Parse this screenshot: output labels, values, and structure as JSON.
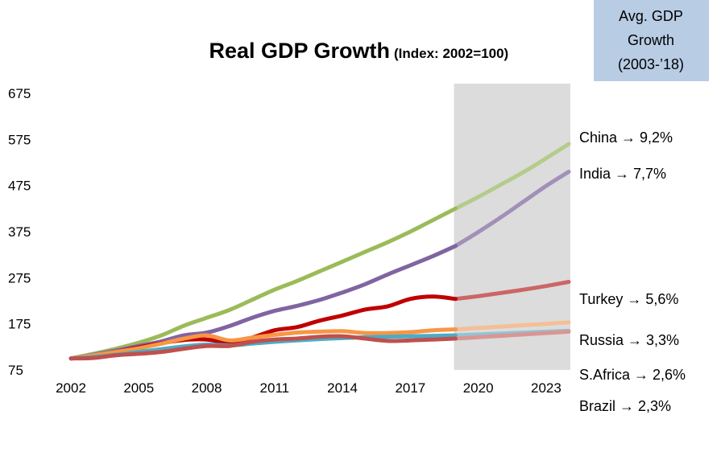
{
  "chart_data": {
    "type": "line",
    "title": "Real GDP Growth",
    "subtitle": "(Index: 2002=100)",
    "xlabel": "",
    "ylabel": "",
    "xlim": [
      2002,
      2024
    ],
    "ylim": [
      75,
      675
    ],
    "x_ticks": [
      "2002",
      "2005",
      "2008",
      "2011",
      "2014",
      "2017",
      "2020",
      "2023"
    ],
    "y_ticks": [
      "675",
      "575",
      "475",
      "375",
      "275",
      "175",
      "75"
    ],
    "grid": false,
    "shaded_region": {
      "x_start": 2019,
      "x_end": 2024,
      "color": "#dcdcdc"
    },
    "legend_box": {
      "lines": [
        "Avg. GDP",
        "Growth",
        "(2003-’18)"
      ],
      "color": "#b8cce4"
    },
    "series": [
      {
        "name": "China",
        "annotation": "China → 9,2%",
        "color": "#9bbb59",
        "projection_color": "#b4cc8a",
        "points": [
          [
            2002,
            100
          ],
          [
            2003,
            110
          ],
          [
            2004,
            121
          ],
          [
            2005,
            134
          ],
          [
            2006,
            150
          ],
          [
            2007,
            171
          ],
          [
            2008,
            188
          ],
          [
            2009,
            205
          ],
          [
            2010,
            227
          ],
          [
            2011,
            249
          ],
          [
            2012,
            268
          ],
          [
            2013,
            289
          ],
          [
            2014,
            310
          ],
          [
            2015,
            331
          ],
          [
            2016,
            352
          ],
          [
            2017,
            375
          ],
          [
            2018,
            400
          ],
          [
            2019,
            425
          ],
          [
            2020,
            450
          ],
          [
            2021,
            477
          ],
          [
            2022,
            504
          ],
          [
            2023,
            534
          ],
          [
            2024,
            565
          ]
        ]
      },
      {
        "name": "India",
        "annotation": "India → 7,7%",
        "color": "#8064a2",
        "projection_color": "#a190b8",
        "points": [
          [
            2002,
            100
          ],
          [
            2003,
            108
          ],
          [
            2004,
            117
          ],
          [
            2005,
            127
          ],
          [
            2006,
            137
          ],
          [
            2007,
            150
          ],
          [
            2008,
            156
          ],
          [
            2009,
            170
          ],
          [
            2010,
            188
          ],
          [
            2011,
            203
          ],
          [
            2012,
            214
          ],
          [
            2013,
            227
          ],
          [
            2014,
            243
          ],
          [
            2015,
            261
          ],
          [
            2016,
            282
          ],
          [
            2017,
            302
          ],
          [
            2018,
            322
          ],
          [
            2019,
            344
          ],
          [
            2020,
            374
          ],
          [
            2021,
            406
          ],
          [
            2022,
            440
          ],
          [
            2023,
            474
          ],
          [
            2024,
            505
          ]
        ]
      },
      {
        "name": "Turkey",
        "annotation": "Turkey → 5,6%",
        "color": "#c00000",
        "projection_color": "#cc6666",
        "points": [
          [
            2002,
            100
          ],
          [
            2003,
            105
          ],
          [
            2004,
            114
          ],
          [
            2005,
            124
          ],
          [
            2006,
            133
          ],
          [
            2007,
            140
          ],
          [
            2008,
            141
          ],
          [
            2009,
            134
          ],
          [
            2010,
            145
          ],
          [
            2011,
            161
          ],
          [
            2012,
            168
          ],
          [
            2013,
            182
          ],
          [
            2014,
            193
          ],
          [
            2015,
            206
          ],
          [
            2016,
            213
          ],
          [
            2017,
            229
          ],
          [
            2018,
            234
          ],
          [
            2019,
            229
          ],
          [
            2020,
            235
          ],
          [
            2021,
            242
          ],
          [
            2022,
            249
          ],
          [
            2023,
            257
          ],
          [
            2024,
            266
          ]
        ]
      },
      {
        "name": "Russia",
        "annotation": "Russia → 3,3%",
        "color": "#f79646",
        "projection_color": "#f5bf96",
        "points": [
          [
            2002,
            100
          ],
          [
            2003,
            107
          ],
          [
            2004,
            114
          ],
          [
            2005,
            122
          ],
          [
            2006,
            132
          ],
          [
            2007,
            143
          ],
          [
            2008,
            150
          ],
          [
            2009,
            139
          ],
          [
            2010,
            145
          ],
          [
            2011,
            151
          ],
          [
            2012,
            156
          ],
          [
            2013,
            158
          ],
          [
            2014,
            159
          ],
          [
            2015,
            155
          ],
          [
            2016,
            155
          ],
          [
            2017,
            157
          ],
          [
            2018,
            161
          ],
          [
            2019,
            163
          ],
          [
            2020,
            166
          ],
          [
            2021,
            169
          ],
          [
            2022,
            172
          ],
          [
            2023,
            175
          ],
          [
            2024,
            178
          ]
        ]
      },
      {
        "name": "S.Africa",
        "annotation": "S.Africa → 2,6%",
        "color": "#4bacc6",
        "projection_color": "#93c4d6",
        "points": [
          [
            2002,
            100
          ],
          [
            2003,
            103
          ],
          [
            2004,
            108
          ],
          [
            2005,
            114
          ],
          [
            2006,
            120
          ],
          [
            2007,
            126
          ],
          [
            2008,
            130
          ],
          [
            2009,
            128
          ],
          [
            2010,
            132
          ],
          [
            2011,
            136
          ],
          [
            2012,
            139
          ],
          [
            2013,
            142
          ],
          [
            2014,
            144
          ],
          [
            2015,
            146
          ],
          [
            2016,
            147
          ],
          [
            2017,
            148
          ],
          [
            2018,
            149
          ],
          [
            2019,
            150
          ],
          [
            2020,
            152
          ],
          [
            2021,
            154
          ],
          [
            2022,
            156
          ],
          [
            2023,
            158
          ],
          [
            2024,
            160
          ]
        ]
      },
      {
        "name": "Brazil",
        "annotation": "Brazil → 2,3%",
        "color": "#c0504d",
        "projection_color": "#d99694",
        "points": [
          [
            2002,
            100
          ],
          [
            2003,
            101
          ],
          [
            2004,
            107
          ],
          [
            2005,
            110
          ],
          [
            2006,
            114
          ],
          [
            2007,
            121
          ],
          [
            2008,
            127
          ],
          [
            2009,
            127
          ],
          [
            2010,
            136
          ],
          [
            2011,
            141
          ],
          [
            2012,
            143
          ],
          [
            2013,
            147
          ],
          [
            2014,
            148
          ],
          [
            2015,
            143
          ],
          [
            2016,
            138
          ],
          [
            2017,
            139
          ],
          [
            2018,
            141
          ],
          [
            2019,
            143
          ],
          [
            2020,
            146
          ],
          [
            2021,
            149
          ],
          [
            2022,
            152
          ],
          [
            2023,
            155
          ],
          [
            2024,
            158
          ]
        ]
      }
    ]
  }
}
